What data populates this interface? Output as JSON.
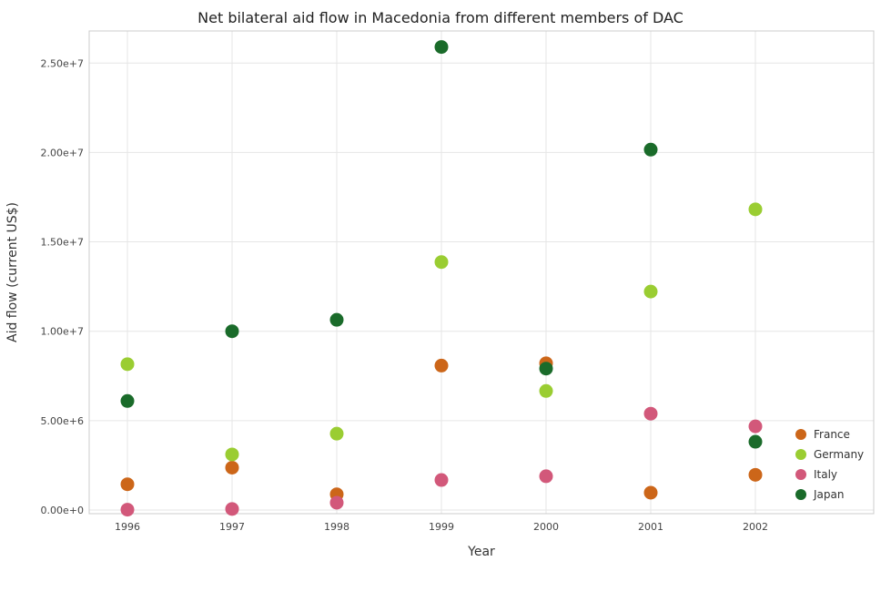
{
  "chart_data": {
    "type": "scatter",
    "title": "Net bilateral aid flow in Macedonia from different members of DAC",
    "xlabel": "Year",
    "ylabel": "Aid flow (current US$)",
    "categories": [
      "1996",
      "1997",
      "1998",
      "1999",
      "2000",
      "2001",
      "2002"
    ],
    "ylim": [
      0,
      27000000
    ],
    "yticks": [
      0,
      5000000,
      10000000,
      15000000,
      20000000,
      25000000
    ],
    "ytick_labels": [
      "0.00e+0",
      "5.00e+6",
      "1.00e+7",
      "1.50e+7",
      "2.00e+7",
      "2.50e+7"
    ],
    "grid": true,
    "legend_position": "bottom-right",
    "series": [
      {
        "name": "France",
        "color": "#cc6619",
        "values": [
          1440000,
          2370000,
          880000,
          8080000,
          8210000,
          970000,
          1970000
        ]
      },
      {
        "name": "Germany",
        "color": "#9acd32",
        "values": [
          8160000,
          3110000,
          4270000,
          13870000,
          6660000,
          12220000,
          16820000
        ]
      },
      {
        "name": "Italy",
        "color": "#d2587a",
        "values": [
          20000,
          60000,
          410000,
          1680000,
          1890000,
          5390000,
          4680000
        ]
      },
      {
        "name": "Japan",
        "color": "#1a6b2a",
        "values": [
          6100000,
          10000000,
          10640000,
          25900000,
          7910000,
          20160000,
          3820000
        ]
      }
    ]
  }
}
